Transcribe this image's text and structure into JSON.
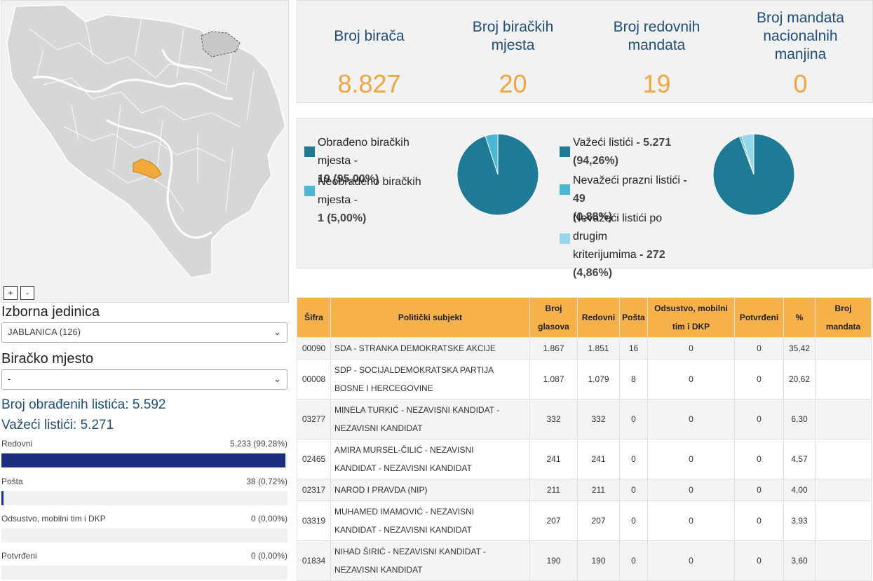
{
  "map": {
    "region_label": "Jablanica highlighted",
    "zoom_in": "+",
    "zoom_out": "-"
  },
  "filters": {
    "unit_label": "Izborna jedinica",
    "unit_value": "JABLANICA (126)",
    "station_label": "Biračko mjesto",
    "station_value": "-"
  },
  "summary": {
    "processed_label": "Broj obrađenih listića: 5.592",
    "valid_label": "Važeći listići: 5.271"
  },
  "bars": [
    {
      "label": "Redovni",
      "value": "5.233 (99,28%)",
      "fraction": 0.9928
    },
    {
      "label": "Pošta",
      "value": "38 (0,72%)",
      "fraction": 0.0072
    },
    {
      "label": "Odsustvo, mobilni tim i DKP",
      "value": "0 (0,00%)",
      "fraction": 0
    },
    {
      "label": "Potvrđeni",
      "value": "0 (0,00%)",
      "fraction": 0
    }
  ],
  "stats": [
    {
      "title_1": "Broj birača",
      "title_2": "",
      "title_3": "",
      "value": "8.827"
    },
    {
      "title_1": "Broj biračkih",
      "title_2": "mjesta",
      "title_3": "",
      "value": "20"
    },
    {
      "title_1": "Broj redovnih",
      "title_2": "mandata",
      "title_3": "",
      "value": "19"
    },
    {
      "title_1": "Broj mandata",
      "title_2": "nacionalnih",
      "title_3": "manjina",
      "value": "0"
    }
  ],
  "pie1": {
    "legend": [
      {
        "text": "Obrađeno biračkih mjesta -",
        "num": "19 (95,00%)",
        "color": "#1f7a95"
      },
      {
        "text": "Neobrađeno biračkih mjesta -",
        "num": "1 (5,00%)",
        "color": "#49b7d6"
      }
    ],
    "fractions": [
      0.95,
      0.05
    ]
  },
  "pie2": {
    "legend": [
      {
        "text": "Važeći listići",
        "num": "- 5.271",
        "num2": "(94,26%)",
        "color": "#1f7a95"
      },
      {
        "text": "Nevažeći prazni listići",
        "num": "- 49",
        "num2": "(0,88%)",
        "color": "#49b7d6"
      },
      {
        "text": "Nevažeći listići po drugim",
        "text2": "kriterijumima",
        "num": "- 272",
        "num2": "(4,86%)",
        "color": "#95d8ee"
      }
    ],
    "fractions": [
      0.9426,
      0.0088,
      0.0486
    ]
  },
  "table": {
    "headers": [
      "Šifra",
      "Politički subjekt",
      "Broj glasova",
      "Redovni",
      "Pošta",
      "Odsustvo, mobilni tim i DKP",
      "Potvrđeni",
      "%",
      "Broj mandata"
    ],
    "rows": [
      {
        "code": "00090",
        "subject": "SDA - STRANKA DEMOKRATSKE AKCIJE",
        "subject2": "",
        "votes": "1.867",
        "regular": "1.851",
        "post": "16",
        "absent": "0",
        "confirmed": "0",
        "pct": "35,42",
        "seats": ""
      },
      {
        "code": "00008",
        "subject": "SDP - SOCIJALDEMOKRATSKA PARTIJA",
        "subject2": "BOSNE I HERCEGOVINE",
        "votes": "1.087",
        "regular": "1.079",
        "post": "8",
        "absent": "0",
        "confirmed": "0",
        "pct": "20,62",
        "seats": ""
      },
      {
        "code": "03277",
        "subject": "MINELA TURKIĆ - NEZAVISNI KANDIDAT -",
        "subject2": "NEZAVISNI KANDIDAT",
        "votes": "332",
        "regular": "332",
        "post": "0",
        "absent": "0",
        "confirmed": "0",
        "pct": "6,30",
        "seats": ""
      },
      {
        "code": "02465",
        "subject": "AMIRA MURSEL-ČILIĆ - NEZAVISNI",
        "subject2": "KANDIDAT - NEZAVISNI KANDIDAT",
        "votes": "241",
        "regular": "241",
        "post": "0",
        "absent": "0",
        "confirmed": "0",
        "pct": "4,57",
        "seats": ""
      },
      {
        "code": "02317",
        "subject": "NAROD I PRAVDA (NIP)",
        "subject2": "",
        "votes": "211",
        "regular": "211",
        "post": "0",
        "absent": "0",
        "confirmed": "0",
        "pct": "4,00",
        "seats": ""
      },
      {
        "code": "03319",
        "subject": "MUHAMED IMAMOVIĆ - NEZAVISNI",
        "subject2": "KANDIDAT - NEZAVISNI KANDIDAT",
        "votes": "207",
        "regular": "207",
        "post": "0",
        "absent": "0",
        "confirmed": "0",
        "pct": "3,93",
        "seats": ""
      },
      {
        "code": "01834",
        "subject": "NIHAD ŠIRIĆ - NEZAVISNI KANDIDAT -",
        "subject2": "NEZAVISNI KANDIDAT",
        "votes": "190",
        "regular": "190",
        "post": "0",
        "absent": "0",
        "confirmed": "0",
        "pct": "3,60",
        "seats": ""
      }
    ]
  },
  "colors": {
    "accent_orange": "#f0a640",
    "title_blue": "#1f4e7a",
    "bar_navy": "#1b2e80",
    "header_orange": "#f6b14b"
  }
}
